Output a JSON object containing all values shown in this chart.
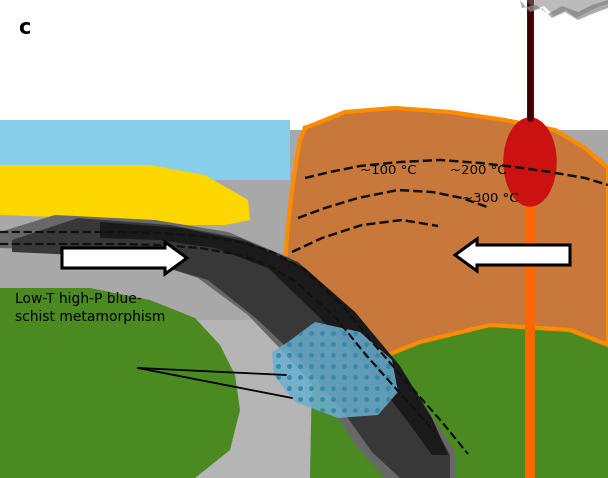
{
  "bg_color": "#ffffff",
  "ocean_color": "#87CEEB",
  "yellow_color": "#FFD700",
  "dark_gray": "#3a3a3a",
  "gray": "#909090",
  "light_gray": "#b0b0b0",
  "green_dark": "#4a8a20",
  "orange_border": "#FF8C00",
  "red_color": "#cc1111",
  "blue_schist": "#6ab0d0",
  "title": "c",
  "label_blueschist": "Low-T high-P blue-\nschist metamorphism",
  "temp_labels": [
    "~100 °C",
    "~200 °C",
    "~300 °C"
  ]
}
